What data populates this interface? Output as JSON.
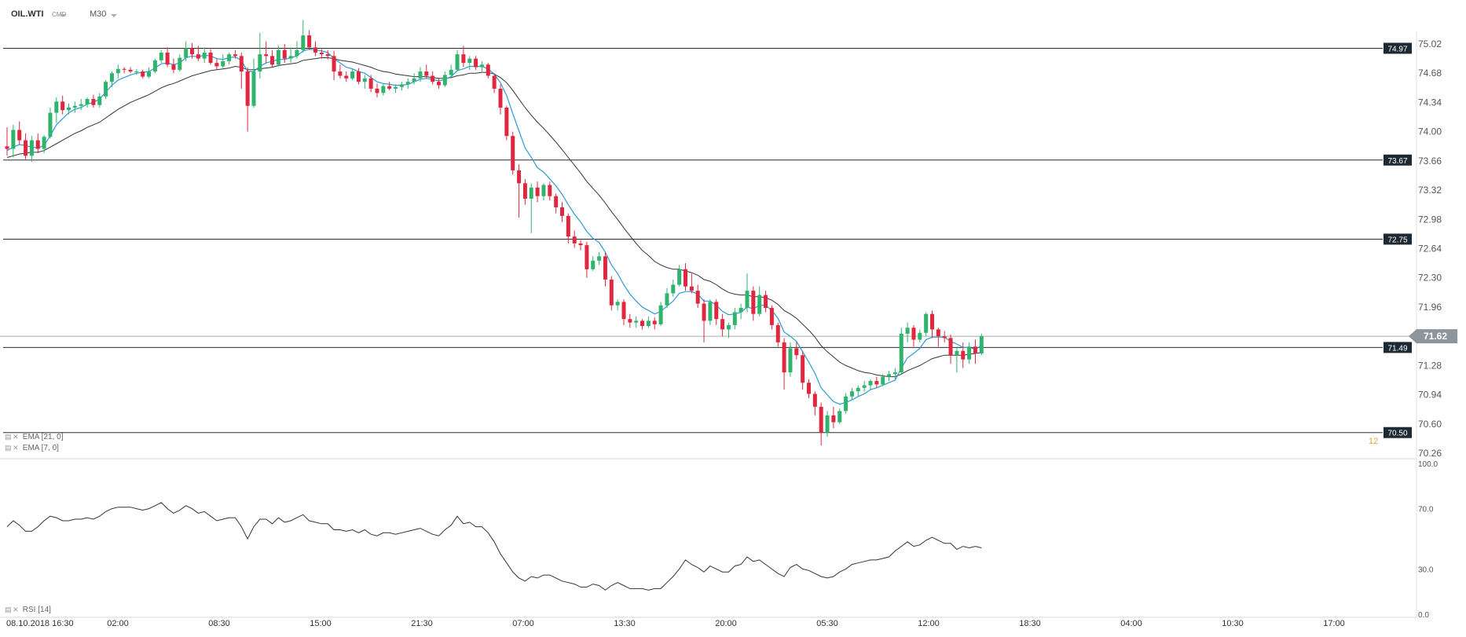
{
  "header": {
    "symbol": "OIL.WTI",
    "source": "CMD",
    "timeframe": "M30"
  },
  "indicators": {
    "ema_slow_label": "EMA  [21, 0]",
    "ema_fast_label": "EMA  [7, 0]",
    "rsi_label": "RSI  [14]",
    "side_marker": "12"
  },
  "colors": {
    "bull": "#2fb36d",
    "bear": "#e0273f",
    "ema_fast": "#2a9ad6",
    "ema_slow": "#333333",
    "rsi": "#333333",
    "level_tag_bg": "#1e2a33",
    "current_tag_bg": "#8d959c"
  },
  "chart_data": {
    "type": "candlestick",
    "price_axis_ticks": [
      "75.02",
      "74.68",
      "74.34",
      "74.00",
      "73.66",
      "73.32",
      "72.98",
      "72.64",
      "72.30",
      "71.96",
      "71.62",
      "71.28",
      "70.94",
      "70.60",
      "70.26"
    ],
    "rsi_axis_ticks": [
      "100.0",
      "70.0",
      "30.0",
      "0.0"
    ],
    "time_axis_labels": [
      "08.10.2018  16:30",
      "02:00",
      "08:30",
      "15:00",
      "21:30",
      "07:00",
      "13:30",
      "20:00",
      "05:30",
      "12:00",
      "18:30",
      "04:00",
      "10:30",
      "17:00"
    ],
    "horizontal_levels": [
      74.97,
      73.67,
      72.75,
      71.49,
      70.5
    ],
    "level_labels": [
      "74.97",
      "73.67",
      "72.75",
      "71.49",
      "70.50"
    ],
    "current_price": 71.62,
    "current_price_label": "71.62",
    "ohlc": [
      [
        73.83,
        74.05,
        73.72,
        73.8
      ],
      [
        73.8,
        74.08,
        73.7,
        74.02
      ],
      [
        74.02,
        74.12,
        73.85,
        73.9
      ],
      [
        73.9,
        73.98,
        73.68,
        73.72
      ],
      [
        73.72,
        73.95,
        73.65,
        73.9
      ],
      [
        73.9,
        73.98,
        73.75,
        73.8
      ],
      [
        73.8,
        73.96,
        73.75,
        73.94
      ],
      [
        73.94,
        74.28,
        73.92,
        74.22
      ],
      [
        74.22,
        74.4,
        74.1,
        74.35
      ],
      [
        74.35,
        74.42,
        74.2,
        74.25
      ],
      [
        74.25,
        74.33,
        74.2,
        74.28
      ],
      [
        74.28,
        74.35,
        74.22,
        74.3
      ],
      [
        74.3,
        74.38,
        74.25,
        74.32
      ],
      [
        74.32,
        74.4,
        74.28,
        74.38
      ],
      [
        74.38,
        74.43,
        74.28,
        74.31
      ],
      [
        74.31,
        74.45,
        74.28,
        74.41
      ],
      [
        74.41,
        74.6,
        74.38,
        74.58
      ],
      [
        74.58,
        74.7,
        74.52,
        74.68
      ],
      [
        74.68,
        74.78,
        74.62,
        74.73
      ],
      [
        74.73,
        74.75,
        74.68,
        74.72
      ],
      [
        74.72,
        74.75,
        74.68,
        74.7
      ],
      [
        74.7,
        74.73,
        74.66,
        74.7
      ],
      [
        74.7,
        74.72,
        74.62,
        74.64
      ],
      [
        74.64,
        74.75,
        74.62,
        74.7
      ],
      [
        74.7,
        74.85,
        74.68,
        74.83
      ],
      [
        74.83,
        74.95,
        74.8,
        74.92
      ],
      [
        74.92,
        74.98,
        74.75,
        74.78
      ],
      [
        74.78,
        74.85,
        74.68,
        74.72
      ],
      [
        74.72,
        74.9,
        74.7,
        74.86
      ],
      [
        74.86,
        75.05,
        74.82,
        74.97
      ],
      [
        74.97,
        75.03,
        74.85,
        74.9
      ],
      [
        74.9,
        75.0,
        74.82,
        74.85
      ],
      [
        74.85,
        74.98,
        74.8,
        74.92
      ],
      [
        74.92,
        74.96,
        74.78,
        74.8
      ],
      [
        74.8,
        74.85,
        74.72,
        74.76
      ],
      [
        74.76,
        74.9,
        74.74,
        74.82
      ],
      [
        74.82,
        74.92,
        74.78,
        74.9
      ],
      [
        74.9,
        74.95,
        74.85,
        74.88
      ],
      [
        74.88,
        74.92,
        74.5,
        74.7
      ],
      [
        74.7,
        74.75,
        74.0,
        74.3
      ],
      [
        74.3,
        74.85,
        74.28,
        74.7
      ],
      [
        74.7,
        75.15,
        74.62,
        74.9
      ],
      [
        74.9,
        75.05,
        74.8,
        74.88
      ],
      [
        74.88,
        74.95,
        74.75,
        74.78
      ],
      [
        74.78,
        75.0,
        74.76,
        74.95
      ],
      [
        74.95,
        75.02,
        74.8,
        74.85
      ],
      [
        74.85,
        74.98,
        74.8,
        74.88
      ],
      [
        74.88,
        75.05,
        74.85,
        74.95
      ],
      [
        74.95,
        75.3,
        74.92,
        75.12
      ],
      [
        75.12,
        75.18,
        74.95,
        74.98
      ],
      [
        74.98,
        75.05,
        74.88,
        74.92
      ],
      [
        74.92,
        74.96,
        74.85,
        74.9
      ],
      [
        74.9,
        74.95,
        74.84,
        74.88
      ],
      [
        74.88,
        74.94,
        74.6,
        74.7
      ],
      [
        74.7,
        74.78,
        74.62,
        74.65
      ],
      [
        74.65,
        74.7,
        74.58,
        74.62
      ],
      [
        74.62,
        74.73,
        74.6,
        74.7
      ],
      [
        74.7,
        74.74,
        74.55,
        74.58
      ],
      [
        74.58,
        74.66,
        74.5,
        74.62
      ],
      [
        74.62,
        74.66,
        74.46,
        74.5
      ],
      [
        74.5,
        74.56,
        74.4,
        74.45
      ],
      [
        74.45,
        74.56,
        74.42,
        74.53
      ],
      [
        74.53,
        74.58,
        74.48,
        74.5
      ],
      [
        74.5,
        74.55,
        74.45,
        74.52
      ],
      [
        74.52,
        74.58,
        74.48,
        74.55
      ],
      [
        74.55,
        74.62,
        74.5,
        74.58
      ],
      [
        74.58,
        74.68,
        74.55,
        74.62
      ],
      [
        74.62,
        74.75,
        74.58,
        74.7
      ],
      [
        74.7,
        74.78,
        74.62,
        74.65
      ],
      [
        74.65,
        74.7,
        74.55,
        74.58
      ],
      [
        74.58,
        74.62,
        74.5,
        74.54
      ],
      [
        74.54,
        74.7,
        74.52,
        74.66
      ],
      [
        74.66,
        74.78,
        74.62,
        74.72
      ],
      [
        74.72,
        74.95,
        74.7,
        74.9
      ],
      [
        74.9,
        75.0,
        74.75,
        74.8
      ],
      [
        74.8,
        74.88,
        74.72,
        74.85
      ],
      [
        74.85,
        74.88,
        74.72,
        74.75
      ],
      [
        74.75,
        74.82,
        74.7,
        74.78
      ],
      [
        74.78,
        74.8,
        74.62,
        74.65
      ],
      [
        74.65,
        74.68,
        74.45,
        74.5
      ],
      [
        74.5,
        74.55,
        74.2,
        74.28
      ],
      [
        74.28,
        74.3,
        73.9,
        73.95
      ],
      [
        73.95,
        74.0,
        73.5,
        73.55
      ],
      [
        73.55,
        73.62,
        73.0,
        73.4
      ],
      [
        73.4,
        73.45,
        73.15,
        73.22
      ],
      [
        73.22,
        73.4,
        72.82,
        73.35
      ],
      [
        73.35,
        73.42,
        73.18,
        73.25
      ],
      [
        73.25,
        73.4,
        73.2,
        73.38
      ],
      [
        73.38,
        73.42,
        73.2,
        73.25
      ],
      [
        73.25,
        73.28,
        73.05,
        73.12
      ],
      [
        73.12,
        73.18,
        72.95,
        73.02
      ],
      [
        73.02,
        73.05,
        72.7,
        72.78
      ],
      [
        72.78,
        72.85,
        72.65,
        72.7
      ],
      [
        72.7,
        72.74,
        72.62,
        72.68
      ],
      [
        72.68,
        72.72,
        72.3,
        72.4
      ],
      [
        72.4,
        72.55,
        72.38,
        72.5
      ],
      [
        72.5,
        72.6,
        72.45,
        72.55
      ],
      [
        72.55,
        72.6,
        72.2,
        72.28
      ],
      [
        72.28,
        72.32,
        71.92,
        71.98
      ],
      [
        71.98,
        72.05,
        71.92,
        72.02
      ],
      [
        72.02,
        72.05,
        71.75,
        71.82
      ],
      [
        71.82,
        71.88,
        71.72,
        71.78
      ],
      [
        71.78,
        71.85,
        71.72,
        71.8
      ],
      [
        71.8,
        71.82,
        71.7,
        71.74
      ],
      [
        71.74,
        71.85,
        71.72,
        71.8
      ],
      [
        71.8,
        71.84,
        71.7,
        71.76
      ],
      [
        71.76,
        72.02,
        71.74,
        71.98
      ],
      [
        71.98,
        72.18,
        71.95,
        72.12
      ],
      [
        72.12,
        72.28,
        72.08,
        72.22
      ],
      [
        72.22,
        72.45,
        72.2,
        72.4
      ],
      [
        72.4,
        72.47,
        72.15,
        72.2
      ],
      [
        72.2,
        72.35,
        72.12,
        72.15
      ],
      [
        72.15,
        72.22,
        71.95,
        72.0
      ],
      [
        72.0,
        72.05,
        71.55,
        71.8
      ],
      [
        71.8,
        72.05,
        71.75,
        72.02
      ],
      [
        72.02,
        72.05,
        71.75,
        71.82
      ],
      [
        71.82,
        71.88,
        71.62,
        71.7
      ],
      [
        71.7,
        71.78,
        71.6,
        71.75
      ],
      [
        71.75,
        71.95,
        71.7,
        71.9
      ],
      [
        71.9,
        72.0,
        71.82,
        71.95
      ],
      [
        71.95,
        72.35,
        71.9,
        72.15
      ],
      [
        72.15,
        72.2,
        71.8,
        71.88
      ],
      [
        71.88,
        72.2,
        71.85,
        72.1
      ],
      [
        72.1,
        72.15,
        71.9,
        71.95
      ],
      [
        71.95,
        71.98,
        71.7,
        71.75
      ],
      [
        71.75,
        71.78,
        71.5,
        71.55
      ],
      [
        71.55,
        71.6,
        71.0,
        71.2
      ],
      [
        71.2,
        71.55,
        71.15,
        71.48
      ],
      [
        71.48,
        71.55,
        71.35,
        71.4
      ],
      [
        71.4,
        71.45,
        71.0,
        71.08
      ],
      [
        71.08,
        71.12,
        70.9,
        70.95
      ],
      [
        70.95,
        70.98,
        70.7,
        70.8
      ],
      [
        70.8,
        70.85,
        70.35,
        70.5
      ],
      [
        70.5,
        70.75,
        70.45,
        70.7
      ],
      [
        70.7,
        70.8,
        70.55,
        70.62
      ],
      [
        70.62,
        70.78,
        70.6,
        70.75
      ],
      [
        70.75,
        70.96,
        70.72,
        70.92
      ],
      [
        70.92,
        71.02,
        70.88,
        70.98
      ],
      [
        70.98,
        71.05,
        70.92,
        71.02
      ],
      [
        71.02,
        71.1,
        70.98,
        71.05
      ],
      [
        71.05,
        71.12,
        71.0,
        71.1
      ],
      [
        71.1,
        71.15,
        71.02,
        71.06
      ],
      [
        71.06,
        71.18,
        71.04,
        71.15
      ],
      [
        71.15,
        71.22,
        71.1,
        71.18
      ],
      [
        71.18,
        71.25,
        71.12,
        71.2
      ],
      [
        71.2,
        71.72,
        71.18,
        71.65
      ],
      [
        71.65,
        71.78,
        71.55,
        71.72
      ],
      [
        71.72,
        71.75,
        71.5,
        71.58
      ],
      [
        71.58,
        71.7,
        71.55,
        71.66
      ],
      [
        71.66,
        71.9,
        71.62,
        71.88
      ],
      [
        71.88,
        71.92,
        71.6,
        71.7
      ],
      [
        71.7,
        71.72,
        71.5,
        71.62
      ],
      [
        71.62,
        71.68,
        71.55,
        71.6
      ],
      [
        71.6,
        71.64,
        71.3,
        71.4
      ],
      [
        71.4,
        71.5,
        71.2,
        71.45
      ],
      [
        71.45,
        71.55,
        71.25,
        71.35
      ],
      [
        71.35,
        71.55,
        71.3,
        71.5
      ],
      [
        71.5,
        71.58,
        71.3,
        71.42
      ],
      [
        71.42,
        71.65,
        71.4,
        71.62
      ]
    ],
    "ema_fast": [
      73.78,
      73.82,
      73.85,
      73.84,
      73.82,
      73.81,
      73.84,
      73.95,
      74.08,
      74.15,
      74.22,
      74.26,
      74.28,
      74.32,
      74.34,
      74.38,
      74.46,
      74.54,
      74.6,
      74.63,
      74.66,
      74.68,
      74.69,
      74.7,
      74.74,
      74.79,
      74.8,
      74.78,
      74.8,
      74.86,
      74.88,
      74.87,
      74.89,
      74.88,
      74.85,
      74.84,
      74.86,
      74.87,
      74.83,
      74.7,
      74.7,
      74.76,
      74.8,
      74.82,
      74.84,
      74.84,
      74.86,
      74.88,
      74.94,
      74.96,
      74.95,
      74.94,
      74.92,
      74.85,
      74.8,
      74.75,
      74.73,
      74.7,
      74.68,
      74.63,
      74.58,
      74.56,
      74.55,
      74.54,
      74.54,
      74.55,
      74.58,
      74.61,
      74.62,
      74.61,
      74.59,
      74.61,
      74.64,
      74.71,
      74.73,
      74.76,
      74.76,
      74.76,
      74.73,
      74.67,
      74.57,
      74.42,
      74.21,
      74.01,
      73.81,
      73.7,
      73.58,
      73.53,
      73.45,
      73.37,
      73.27,
      73.15,
      73.04,
      72.95,
      72.84,
      72.76,
      72.71,
      72.6,
      72.45,
      72.35,
      72.22,
      72.11,
      72.03,
      71.96,
      71.92,
      71.88,
      71.91,
      71.97,
      72.03,
      72.12,
      72.14,
      72.14,
      72.11,
      72.03,
      72.03,
      71.98,
      71.91,
      71.87,
      71.88,
      71.9,
      71.96,
      71.94,
      71.98,
      71.98,
      71.92,
      71.83,
      71.67,
      71.62,
      71.56,
      71.44,
      71.32,
      71.19,
      71.02,
      70.94,
      70.86,
      70.83,
      70.85,
      70.88,
      70.92,
      70.95,
      71.0,
      71.02,
      71.05,
      71.08,
      71.11,
      71.25,
      71.37,
      71.42,
      71.48,
      71.58,
      71.61,
      71.61,
      71.61,
      71.56,
      71.53,
      71.49,
      71.49,
      71.47,
      71.51
    ],
    "ema_slow": [
      73.7,
      73.72,
      73.74,
      73.75,
      73.76,
      73.76,
      73.78,
      73.82,
      73.86,
      73.9,
      73.94,
      73.98,
      74.01,
      74.05,
      74.08,
      74.11,
      74.16,
      74.21,
      74.26,
      74.3,
      74.34,
      74.37,
      74.4,
      74.43,
      74.47,
      74.51,
      74.54,
      74.56,
      74.59,
      74.62,
      74.65,
      74.67,
      74.69,
      74.71,
      74.72,
      74.73,
      74.74,
      74.76,
      74.75,
      74.72,
      74.72,
      74.73,
      74.74,
      74.75,
      74.77,
      74.78,
      74.79,
      74.8,
      74.83,
      74.84,
      74.85,
      74.86,
      74.86,
      74.85,
      74.83,
      74.82,
      74.81,
      74.79,
      74.77,
      74.75,
      74.72,
      74.7,
      74.69,
      74.67,
      74.66,
      74.65,
      74.64,
      74.64,
      74.64,
      74.63,
      74.62,
      74.62,
      74.63,
      74.65,
      74.66,
      74.68,
      74.68,
      74.69,
      74.69,
      74.67,
      74.63,
      74.57,
      74.48,
      74.38,
      74.28,
      74.19,
      74.11,
      74.04,
      73.96,
      73.88,
      73.79,
      73.7,
      73.61,
      73.52,
      73.42,
      73.34,
      73.26,
      73.17,
      73.07,
      72.98,
      72.88,
      72.79,
      72.7,
      72.62,
      72.56,
      72.49,
      72.45,
      72.42,
      72.4,
      72.4,
      72.38,
      72.36,
      72.33,
      72.28,
      72.26,
      72.22,
      72.17,
      72.13,
      72.11,
      72.1,
      72.1,
      72.08,
      72.08,
      72.07,
      72.04,
      71.99,
      71.92,
      71.88,
      71.83,
      71.76,
      71.69,
      71.61,
      71.51,
      71.44,
      71.38,
      71.32,
      71.28,
      71.25,
      71.22,
      71.2,
      71.19,
      71.17,
      71.16,
      71.15,
      71.15,
      71.18,
      71.22,
      71.25,
      71.28,
      71.32,
      71.36,
      71.38,
      71.4,
      71.4,
      71.4,
      71.4,
      71.41,
      71.42,
      71.43
    ],
    "rsi": [
      58,
      62,
      59,
      55,
      55,
      58,
      62,
      65,
      64,
      62,
      62,
      63,
      63,
      64,
      63,
      65,
      68,
      70,
      71,
      71,
      71,
      70,
      69,
      70,
      72,
      74,
      70,
      67,
      69,
      72,
      70,
      67,
      68,
      65,
      62,
      63,
      64,
      64,
      58,
      50,
      58,
      63,
      63,
      60,
      64,
      61,
      62,
      64,
      66,
      62,
      61,
      60,
      60,
      56,
      56,
      55,
      56,
      54,
      56,
      53,
      52,
      54,
      54,
      53,
      54,
      55,
      56,
      57,
      55,
      53,
      52,
      56,
      59,
      65,
      60,
      61,
      58,
      58,
      54,
      48,
      40,
      34,
      28,
      24,
      22,
      25,
      24,
      26,
      26,
      24,
      22,
      21,
      20,
      18,
      18,
      20,
      19,
      16,
      19,
      21,
      19,
      17,
      17,
      17,
      16,
      17,
      17,
      21,
      25,
      30,
      36,
      33,
      31,
      28,
      32,
      30,
      28,
      28,
      32,
      33,
      38,
      35,
      36,
      33,
      30,
      27,
      25,
      31,
      33,
      30,
      29,
      27,
      25,
      24,
      25,
      28,
      30,
      33,
      34,
      35,
      36,
      36,
      37,
      38,
      42,
      45,
      48,
      45,
      46,
      49,
      51,
      49,
      47,
      47,
      43,
      45,
      44,
      45,
      44
    ]
  }
}
